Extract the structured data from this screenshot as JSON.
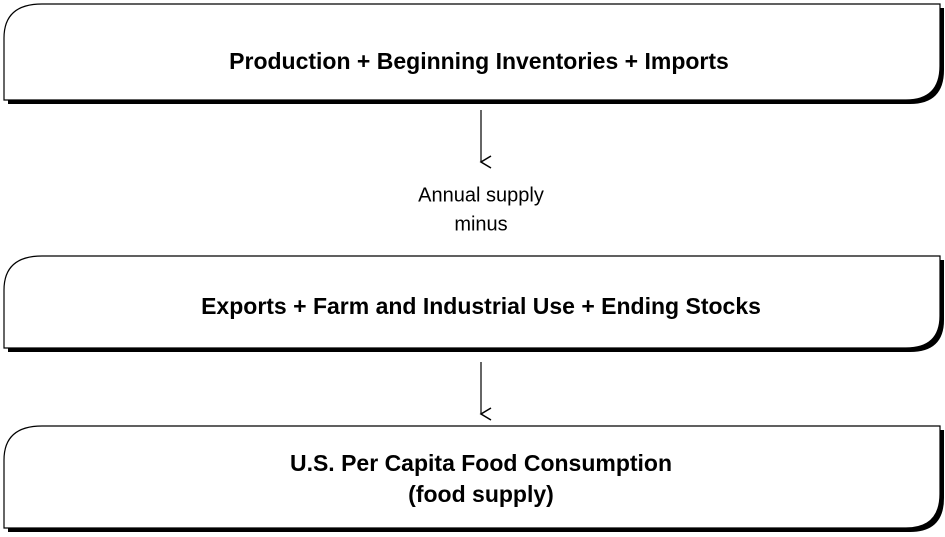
{
  "nodes": [
    {
      "label": "Production + Beginning Inventories + Imports"
    },
    {
      "label": "Exports + Farm and Industrial Use + Ending Stocks"
    },
    {
      "label": "U.S. Per Capita Food Consumption",
      "sublabel": "(food supply)"
    }
  ],
  "connector": {
    "label": "Annual supply",
    "sublabel": "minus"
  }
}
